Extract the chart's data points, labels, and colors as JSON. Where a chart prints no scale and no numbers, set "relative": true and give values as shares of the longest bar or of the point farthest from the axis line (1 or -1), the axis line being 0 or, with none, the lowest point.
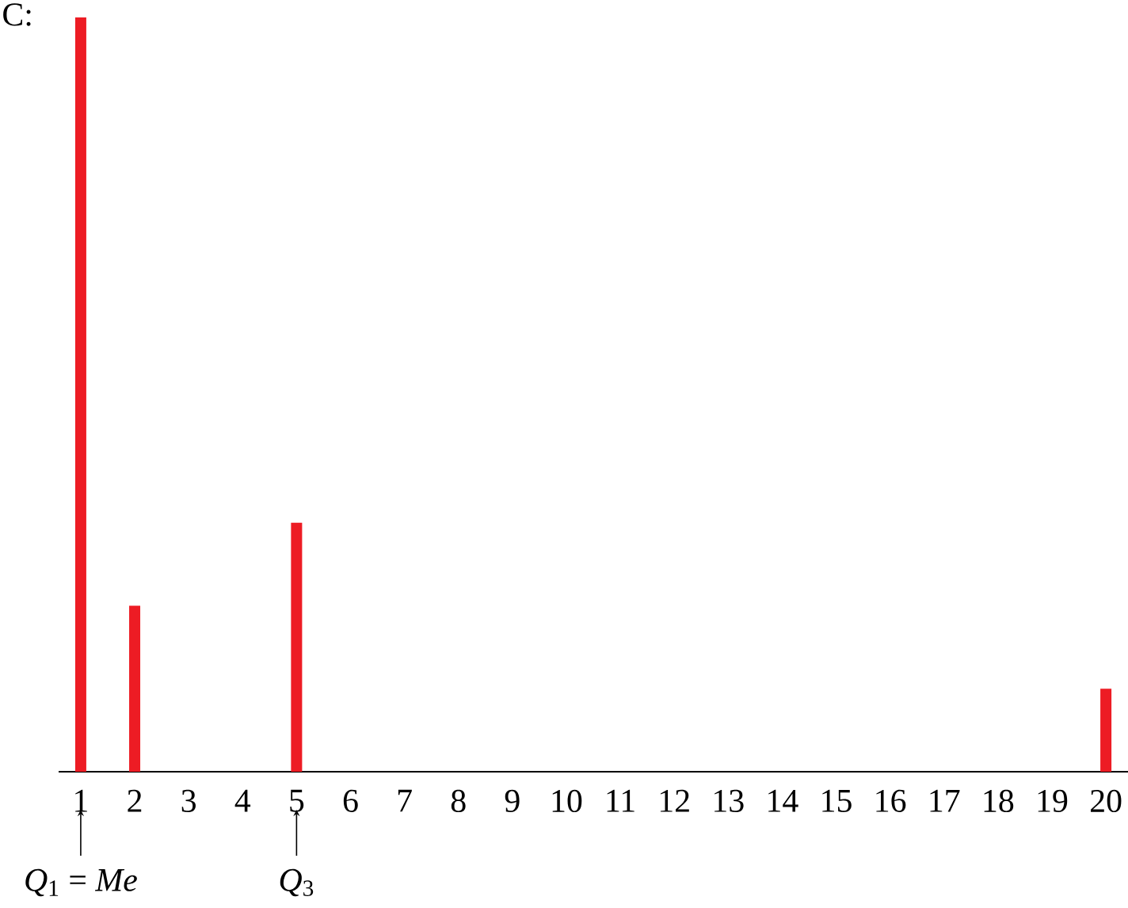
{
  "chart_data": {
    "type": "bar",
    "title": "C:",
    "categories": [
      "1",
      "2",
      "3",
      "4",
      "5",
      "6",
      "7",
      "8",
      "9",
      "10",
      "11",
      "12",
      "13",
      "14",
      "15",
      "16",
      "17",
      "18",
      "19",
      "20"
    ],
    "values": [
      1,
      0.22,
      0,
      0,
      0.33,
      0,
      0,
      0,
      0,
      0,
      0,
      0,
      0,
      0,
      0,
      0,
      0,
      0,
      0,
      0.11
    ],
    "color": "#ed1c24",
    "relative": true,
    "annotations": [
      {
        "text": "*Q*$_{1}$ = *Me*",
        "x": "1"
      },
      {
        "text": "*Q*$_{3}$",
        "x": "5"
      }
    ]
  }
}
